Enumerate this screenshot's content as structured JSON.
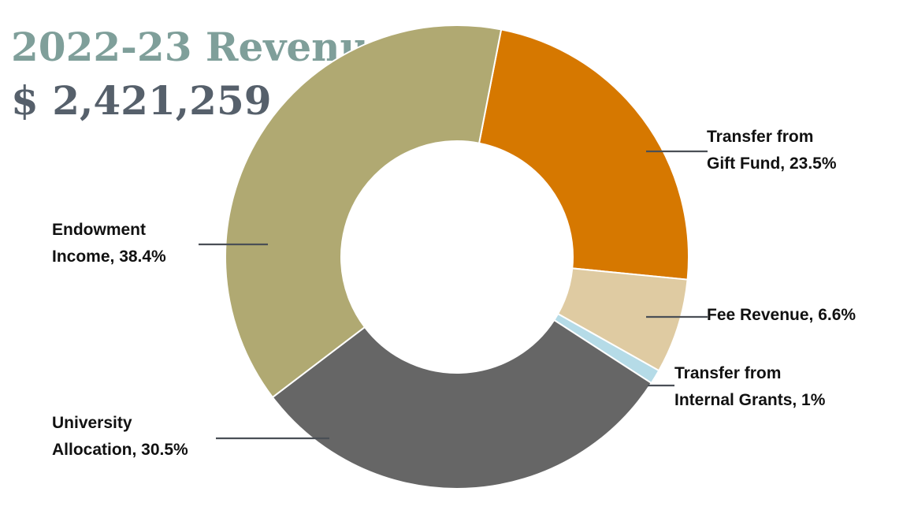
{
  "chart_data": {
    "type": "pie",
    "donut": true,
    "title": "2022-23 Revenue",
    "subtitle": "$ 2,421,259",
    "slices": [
      {
        "label_lines": [
          "Transfer from",
          "Gift Fund, 23.5%"
        ],
        "value": 23.5,
        "color": "#d67800"
      },
      {
        "label_lines": [
          "Fee Revenue, 6.6%"
        ],
        "value": 6.6,
        "color": "#dfcba2"
      },
      {
        "label_lines": [
          "Transfer from",
          "Internal Grants, 1%"
        ],
        "value": 1.0,
        "color": "#b5dbe7"
      },
      {
        "label_lines": [
          "University",
          "Allocation, 30.5%"
        ],
        "value": 30.5,
        "color": "#666666"
      },
      {
        "label_lines": [
          "Endowment",
          "Income, 38.4%"
        ],
        "value": 38.4,
        "color": "#b0a972"
      }
    ]
  }
}
